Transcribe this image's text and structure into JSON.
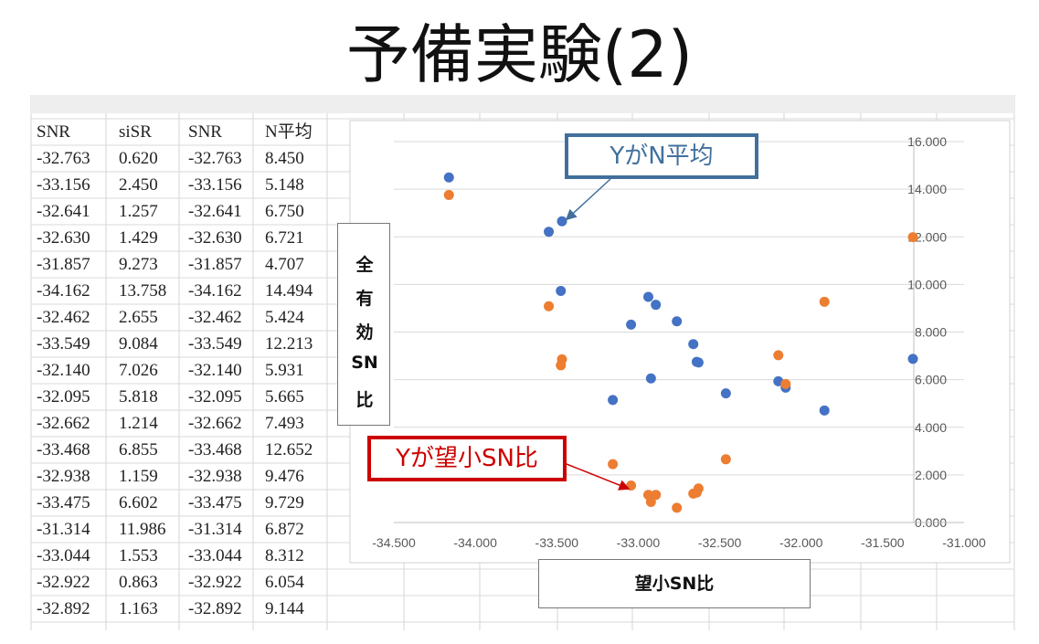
{
  "title": "予備実験(2)",
  "table": {
    "headers": [
      "SNR",
      "siSR",
      "SNR",
      "N平均"
    ],
    "rows": [
      [
        "-32.763",
        "0.620",
        "-32.763",
        "8.450"
      ],
      [
        "-33.156",
        "2.450",
        "-33.156",
        "5.148"
      ],
      [
        "-32.641",
        "1.257",
        "-32.641",
        "6.750"
      ],
      [
        "-32.630",
        "1.429",
        "-32.630",
        "6.721"
      ],
      [
        "-31.857",
        "9.273",
        "-31.857",
        "4.707"
      ],
      [
        "-34.162",
        "13.758",
        "-34.162",
        "14.494"
      ],
      [
        "-32.462",
        "2.655",
        "-32.462",
        "5.424"
      ],
      [
        "-33.549",
        "9.084",
        "-33.549",
        "12.213"
      ],
      [
        "-32.140",
        "7.026",
        "-32.140",
        "5.931"
      ],
      [
        "-32.095",
        "5.818",
        "-32.095",
        "5.665"
      ],
      [
        "-32.662",
        "1.214",
        "-32.662",
        "7.493"
      ],
      [
        "-33.468",
        "6.855",
        "-33.468",
        "12.652"
      ],
      [
        "-32.938",
        "1.159",
        "-32.938",
        "9.476"
      ],
      [
        "-33.475",
        "6.602",
        "-33.475",
        "9.729"
      ],
      [
        "-31.314",
        "11.986",
        "-31.314",
        "6.872"
      ],
      [
        "-33.044",
        "1.553",
        "-33.044",
        "8.312"
      ],
      [
        "-32.922",
        "0.863",
        "-32.922",
        "6.054"
      ],
      [
        "-32.892",
        "1.163",
        "-32.892",
        "9.144"
      ]
    ]
  },
  "chart_data": {
    "type": "scatter",
    "xlabel": "望小SN比",
    "ylabel": "全有効SN比",
    "ylabel_chars": [
      "全",
      "有",
      "効",
      "SN",
      "比"
    ],
    "xlim": [
      -34.5,
      -31.0
    ],
    "ylim": [
      0.0,
      16.0
    ],
    "xticks": [
      "-34.500",
      "-34.000",
      "-33.500",
      "-33.000",
      "-32.500",
      "-32.000",
      "-31.500",
      "-31.000"
    ],
    "yticks": [
      "0.000",
      "2.000",
      "4.000",
      "6.000",
      "8.000",
      "10.000",
      "12.000",
      "14.000",
      "16.000"
    ],
    "grid": true,
    "series": [
      {
        "color": "#4472c4",
        "points": [
          [
            -32.763,
            8.45
          ],
          [
            -33.156,
            5.148
          ],
          [
            -32.641,
            6.75
          ],
          [
            -32.63,
            6.721
          ],
          [
            -31.857,
            4.707
          ],
          [
            -34.162,
            14.494
          ],
          [
            -32.462,
            5.424
          ],
          [
            -33.549,
            12.213
          ],
          [
            -32.14,
            5.931
          ],
          [
            -32.095,
            5.665
          ],
          [
            -32.662,
            7.493
          ],
          [
            -33.468,
            12.652
          ],
          [
            -32.938,
            9.476
          ],
          [
            -33.475,
            9.729
          ],
          [
            -31.314,
            6.872
          ],
          [
            -33.044,
            8.312
          ],
          [
            -32.922,
            6.054
          ],
          [
            -32.892,
            9.144
          ]
        ]
      },
      {
        "color": "#ed7d31",
        "points": [
          [
            -32.763,
            0.62
          ],
          [
            -33.156,
            2.45
          ],
          [
            -32.641,
            1.257
          ],
          [
            -32.63,
            1.429
          ],
          [
            -31.857,
            9.273
          ],
          [
            -34.162,
            13.758
          ],
          [
            -32.462,
            2.655
          ],
          [
            -33.549,
            9.084
          ],
          [
            -32.14,
            7.026
          ],
          [
            -32.095,
            5.818
          ],
          [
            -32.662,
            1.214
          ],
          [
            -33.468,
            6.855
          ],
          [
            -32.938,
            1.159
          ],
          [
            -33.475,
            6.602
          ],
          [
            -31.314,
            11.986
          ],
          [
            -33.044,
            1.553
          ],
          [
            -32.922,
            0.863
          ],
          [
            -32.892,
            1.163
          ]
        ]
      }
    ],
    "annotations": [
      {
        "text": "YがN平均",
        "color": "#41709c",
        "target": [
          -33.468,
          12.652
        ]
      },
      {
        "text": "Yが望小SN比",
        "color": "#cc0000",
        "target": [
          -33.044,
          1.553
        ]
      }
    ]
  }
}
